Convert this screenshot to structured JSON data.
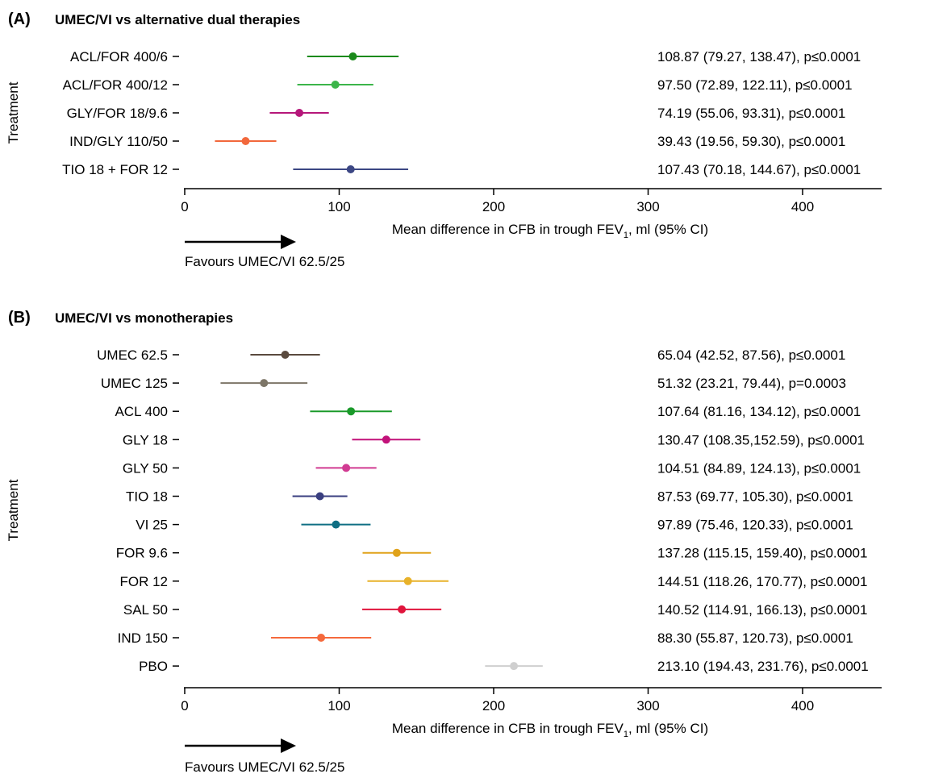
{
  "chart_data": [
    {
      "type": "forest",
      "panel_label": "(A)",
      "title": "UMEC/VI vs alternative dual therapies",
      "ylabel": "Treatment",
      "xlabel_main": "Mean difference in CFB in trough FEV",
      "xlabel_sub": "1",
      "xlabel_tail": ", ml (95% CI)",
      "xlim": [
        0,
        450
      ],
      "xticks": [
        0,
        100,
        200,
        300,
        400
      ],
      "favours": "Favours UMEC/VI 62.5/25",
      "rows": [
        {
          "label": "ACL/FOR 400/6",
          "mean": 108.87,
          "lower": 79.27,
          "upper": 138.47,
          "text": "108.87 (79.27, 138.47), p≤0.0001",
          "color": "#1a8a1a"
        },
        {
          "label": "ACL/FOR 400/12",
          "mean": 97.5,
          "lower": 72.89,
          "upper": 122.11,
          "text": "97.50 (72.89, 122.11), p≤0.0001",
          "color": "#3cb54a"
        },
        {
          "label": "GLY/FOR 18/9.6",
          "mean": 74.19,
          "lower": 55.06,
          "upper": 93.31,
          "text": "74.19 (55.06, 93.31), p≤0.0001",
          "color": "#b5177a"
        },
        {
          "label": "IND/GLY 110/50",
          "mean": 39.43,
          "lower": 19.56,
          "upper": 59.3,
          "text": "39.43 (19.56, 59.30), p≤0.0001",
          "color": "#f2683c"
        },
        {
          "label": "TIO 18 + FOR 12",
          "mean": 107.43,
          "lower": 70.18,
          "upper": 144.67,
          "text": "107.43 (70.18, 144.67), p≤0.0001",
          "color": "#3c4784"
        }
      ]
    },
    {
      "type": "forest",
      "panel_label": "(B)",
      "title": "UMEC/VI vs monotherapies",
      "ylabel": "Treatment",
      "xlabel_main": "Mean difference in CFB in trough FEV",
      "xlabel_sub": "1",
      "xlabel_tail": ", ml (95% CI)",
      "xlim": [
        0,
        450
      ],
      "xticks": [
        0,
        100,
        200,
        300,
        400
      ],
      "favours": "Favours UMEC/VI 62.5/25",
      "rows": [
        {
          "label": "UMEC 62.5",
          "mean": 65.04,
          "lower": 42.52,
          "upper": 87.56,
          "text": "65.04 (42.52, 87.56), p≤0.0001",
          "color": "#5a4a3e"
        },
        {
          "label": "UMEC 125",
          "mean": 51.32,
          "lower": 23.21,
          "upper": 79.44,
          "text": "51.32 (23.21, 79.44), p=0.0003",
          "color": "#7d7668"
        },
        {
          "label": "ACL 400",
          "mean": 107.64,
          "lower": 81.16,
          "upper": 134.12,
          "text": "107.64 (81.16, 134.12), p≤0.0001",
          "color": "#1a9a2a"
        },
        {
          "label": "GLY 18",
          "mean": 130.47,
          "lower": 108.35,
          "upper": 152.59,
          "text": "130.47 (108.35,152.59), p≤0.0001",
          "color": "#c2127a"
        },
        {
          "label": "GLY 50",
          "mean": 104.51,
          "lower": 84.89,
          "upper": 124.13,
          "text": "104.51 (84.89, 124.13), p≤0.0001",
          "color": "#d13b92"
        },
        {
          "label": "TIO 18",
          "mean": 87.53,
          "lower": 69.77,
          "upper": 105.3,
          "text": "87.53 (69.77, 105.30), p≤0.0001",
          "color": "#3a3f80"
        },
        {
          "label": "VI 25",
          "mean": 97.89,
          "lower": 75.46,
          "upper": 120.33,
          "text": "97.89 (75.46, 120.33), p≤0.0001",
          "color": "#0f6f84"
        },
        {
          "label": "FOR 9.6",
          "mean": 137.28,
          "lower": 115.15,
          "upper": 159.4,
          "text": "137.28 (115.15, 159.40), p≤0.0001",
          "color": "#e0a21a"
        },
        {
          "label": "FOR 12",
          "mean": 144.51,
          "lower": 118.26,
          "upper": 170.77,
          "text": "144.51 (118.26, 170.77), p≤0.0001",
          "color": "#e8b22a"
        },
        {
          "label": "SAL 50",
          "mean": 140.52,
          "lower": 114.91,
          "upper": 166.13,
          "text": "140.52 (114.91, 166.13), p≤0.0001",
          "color": "#e0143c"
        },
        {
          "label": "IND 150",
          "mean": 88.3,
          "lower": 55.87,
          "upper": 120.73,
          "text": "88.30 (55.87, 120.73), p≤0.0001",
          "color": "#f5693c"
        },
        {
          "label": "PBO",
          "mean": 213.1,
          "lower": 194.43,
          "upper": 231.76,
          "text": "213.10 (194.43, 231.76), p≤0.0001",
          "color": "#cfcfcf"
        }
      ]
    }
  ]
}
